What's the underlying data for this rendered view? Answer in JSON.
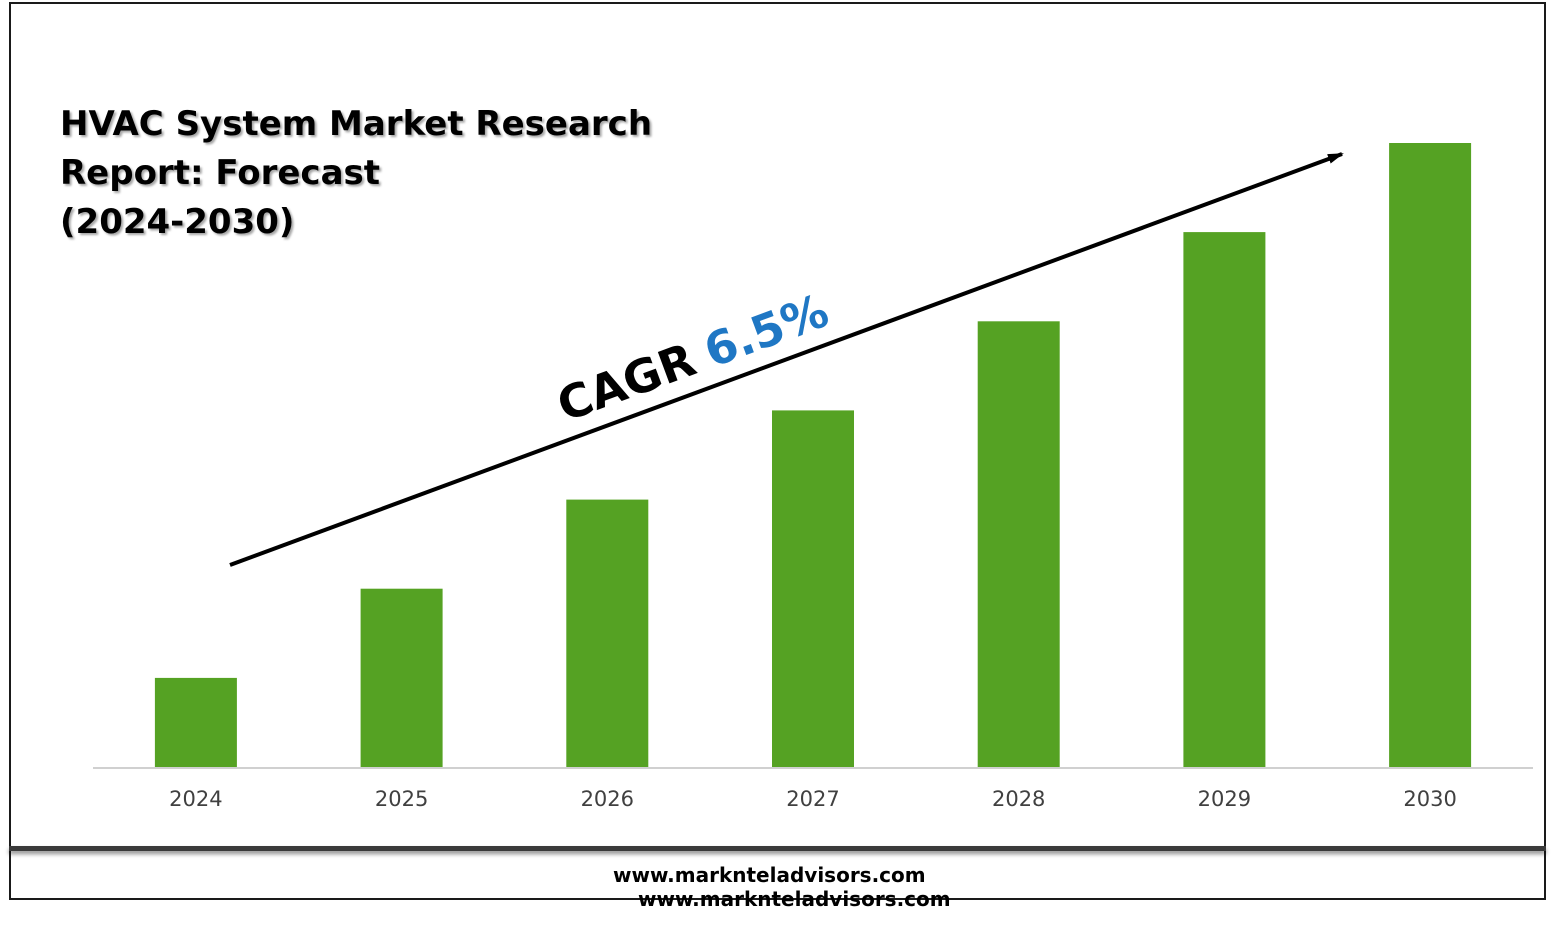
{
  "title": {
    "line1": "HVAC System Market Research",
    "line2": "Report: Forecast",
    "line3": "(2024-2030)"
  },
  "annotation": {
    "cagr_label": "CAGR",
    "cagr_value": "6.5%",
    "label_color": "#000000",
    "value_color": "#1f77c4"
  },
  "footer": {
    "url_primary": "www.marknteladvisors.com",
    "url_secondary": "www.marknteladvisors.com"
  },
  "colors": {
    "bar": "#55a223",
    "axis": "#d0d0d0",
    "arrow": "#000000",
    "frame": "#1a1a1a"
  },
  "chart_data": {
    "type": "bar",
    "categories": [
      "2024",
      "2025",
      "2026",
      "2027",
      "2028",
      "2029",
      "2030"
    ],
    "values": [
      1,
      2,
      3,
      4,
      5,
      6,
      7
    ],
    "ylim": [
      0,
      7
    ],
    "grid": false,
    "legend": "none",
    "title": "HVAC System Market Research Report: Forecast (2024-2030)",
    "xlabel": "",
    "ylabel": ""
  }
}
